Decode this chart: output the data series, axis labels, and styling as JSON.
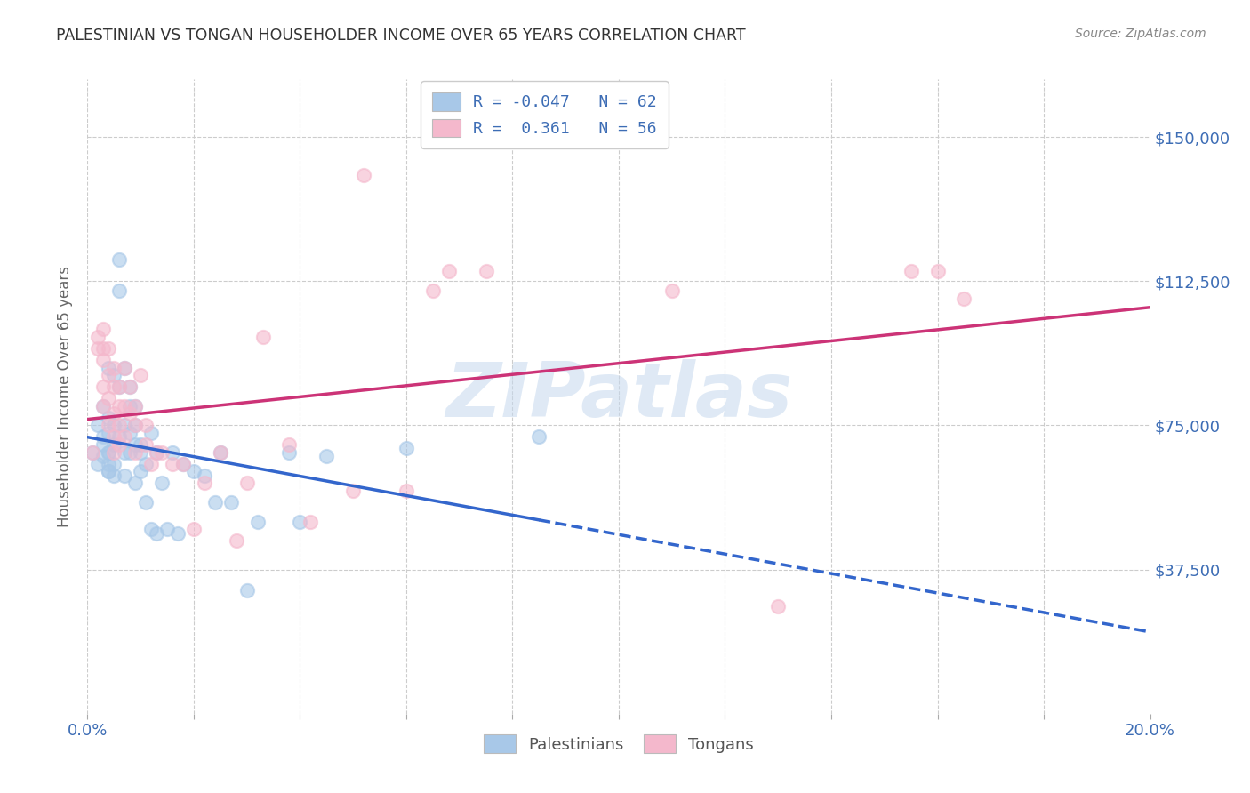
{
  "title": "PALESTINIAN VS TONGAN HOUSEHOLDER INCOME OVER 65 YEARS CORRELATION CHART",
  "source": "Source: ZipAtlas.com",
  "ylabel": "Householder Income Over 65 years",
  "xlim": [
    0.0,
    0.2
  ],
  "ylim": [
    0,
    165000
  ],
  "yticks": [
    37500,
    75000,
    112500,
    150000
  ],
  "ytick_labels": [
    "$37,500",
    "$75,000",
    "$112,500",
    "$150,000"
  ],
  "xticks": [
    0.0,
    0.02,
    0.04,
    0.06,
    0.08,
    0.1,
    0.12,
    0.14,
    0.16,
    0.18,
    0.2
  ],
  "xtick_labels": [
    "0.0%",
    "",
    "",
    "",
    "",
    "",
    "",
    "",
    "",
    "",
    "20.0%"
  ],
  "legend_labels": [
    "Palestinians",
    "Tongans"
  ],
  "blue_R": "-0.047",
  "blue_N": "62",
  "pink_R": "0.361",
  "pink_N": "56",
  "blue_color": "#a8c8e8",
  "pink_color": "#f4b8cc",
  "blue_line_color": "#3366cc",
  "pink_line_color": "#cc3377",
  "axis_color": "#3d6db5",
  "background_color": "#ffffff",
  "grid_color": "#cccccc",
  "watermark": "ZIPatlas",
  "blue_scatter_x": [
    0.001,
    0.002,
    0.002,
    0.003,
    0.003,
    0.003,
    0.003,
    0.004,
    0.004,
    0.004,
    0.004,
    0.004,
    0.004,
    0.004,
    0.004,
    0.005,
    0.005,
    0.005,
    0.005,
    0.005,
    0.006,
    0.006,
    0.006,
    0.006,
    0.007,
    0.007,
    0.007,
    0.007,
    0.008,
    0.008,
    0.008,
    0.008,
    0.009,
    0.009,
    0.009,
    0.009,
    0.01,
    0.01,
    0.01,
    0.011,
    0.011,
    0.012,
    0.012,
    0.013,
    0.013,
    0.014,
    0.015,
    0.016,
    0.017,
    0.018,
    0.02,
    0.022,
    0.024,
    0.025,
    0.027,
    0.03,
    0.032,
    0.038,
    0.04,
    0.045,
    0.06,
    0.085
  ],
  "blue_scatter_y": [
    68000,
    75000,
    65000,
    70000,
    67000,
    80000,
    72000,
    68000,
    65000,
    63000,
    77000,
    73000,
    68000,
    90000,
    63000,
    88000,
    75000,
    70000,
    65000,
    62000,
    118000,
    110000,
    85000,
    72000,
    75000,
    90000,
    68000,
    62000,
    85000,
    80000,
    73000,
    68000,
    80000,
    75000,
    70000,
    60000,
    68000,
    70000,
    63000,
    65000,
    55000,
    73000,
    48000,
    68000,
    47000,
    60000,
    48000,
    68000,
    47000,
    65000,
    63000,
    62000,
    55000,
    68000,
    55000,
    32000,
    50000,
    68000,
    50000,
    67000,
    69000,
    72000
  ],
  "pink_scatter_x": [
    0.001,
    0.002,
    0.002,
    0.003,
    0.003,
    0.003,
    0.003,
    0.003,
    0.004,
    0.004,
    0.004,
    0.004,
    0.005,
    0.005,
    0.005,
    0.005,
    0.005,
    0.006,
    0.006,
    0.006,
    0.006,
    0.007,
    0.007,
    0.007,
    0.008,
    0.008,
    0.009,
    0.009,
    0.009,
    0.01,
    0.011,
    0.011,
    0.012,
    0.013,
    0.014,
    0.016,
    0.018,
    0.02,
    0.022,
    0.025,
    0.028,
    0.03,
    0.033,
    0.038,
    0.042,
    0.05,
    0.052,
    0.06,
    0.065,
    0.068,
    0.075,
    0.11,
    0.13,
    0.155,
    0.16,
    0.165
  ],
  "pink_scatter_y": [
    68000,
    98000,
    95000,
    100000,
    95000,
    92000,
    85000,
    80000,
    95000,
    88000,
    82000,
    75000,
    90000,
    85000,
    78000,
    72000,
    68000,
    85000,
    80000,
    75000,
    70000,
    90000,
    80000,
    72000,
    85000,
    78000,
    80000,
    75000,
    68000,
    88000,
    75000,
    70000,
    65000,
    68000,
    68000,
    65000,
    65000,
    48000,
    60000,
    68000,
    45000,
    60000,
    98000,
    70000,
    50000,
    58000,
    140000,
    58000,
    110000,
    115000,
    115000,
    110000,
    28000,
    115000,
    115000,
    108000
  ]
}
